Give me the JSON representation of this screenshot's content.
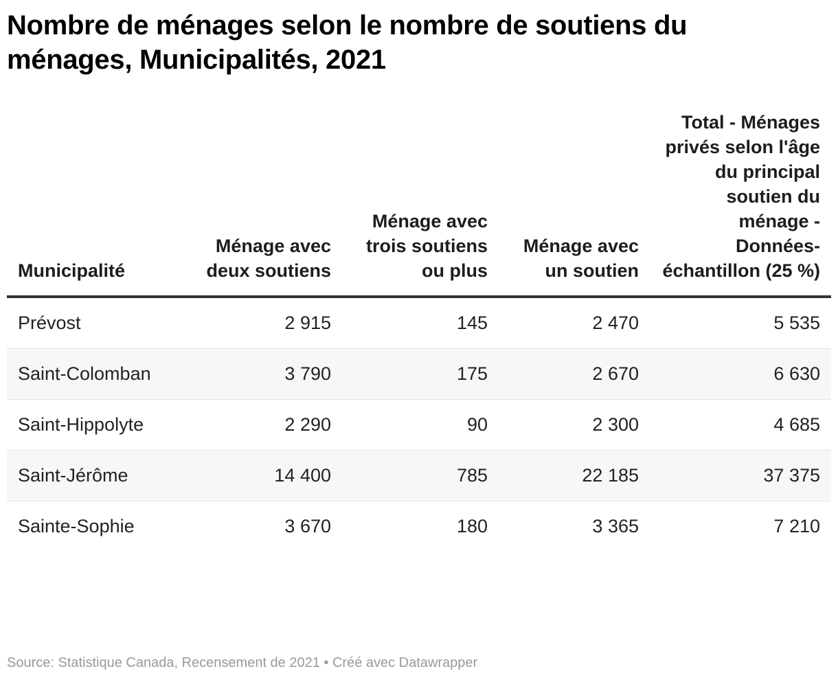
{
  "title": "Nombre de ménages selon le nombre de soutiens du ménages, Municipalités, 2021",
  "chart_data": {
    "type": "table",
    "title": "Nombre de ménages selon le nombre de soutiens du ménages, Municipalités, 2021",
    "columns": [
      "Municipalité",
      "Ménage avec deux soutiens",
      "Ménage avec trois soutiens ou plus",
      "Ménage avec un soutien",
      "Total - Ménages privés selon l'âge du principal soutien du ménage - Données-échantillon (25 %)"
    ],
    "rows": [
      [
        "Prévost",
        "2 915",
        "145",
        "2 470",
        "5 535"
      ],
      [
        "Saint-Colomban",
        "3 790",
        "175",
        "2 670",
        "6 630"
      ],
      [
        "Saint-Hippolyte",
        "2 290",
        "90",
        "2 300",
        "4 685"
      ],
      [
        "Saint-Jérôme",
        "14 400",
        "785",
        "22 185",
        "37 375"
      ],
      [
        "Sainte-Sophie",
        "3 670",
        "180",
        "3 365",
        "7 210"
      ]
    ]
  },
  "footer": {
    "source": "Source: Statistique Canada, Recensement de 2021 • Créé avec Datawrapper"
  }
}
